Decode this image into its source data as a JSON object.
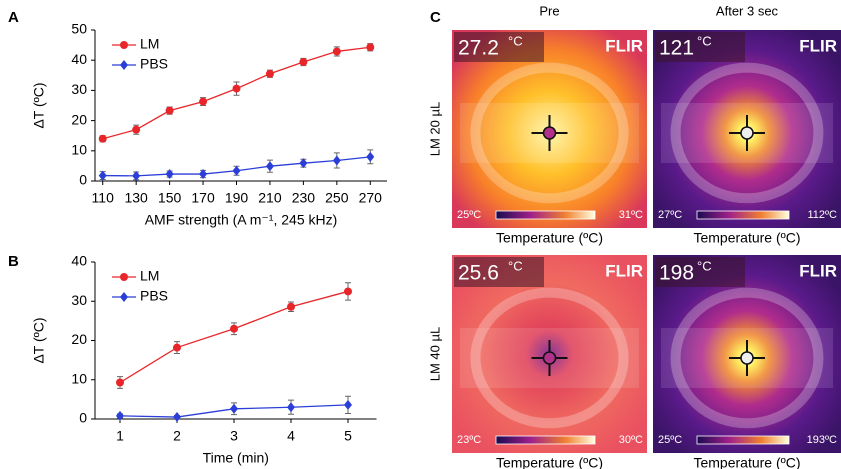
{
  "chart_data": [
    {
      "type": "line",
      "panel": "A",
      "x_label": "AMF strength (A m⁻¹, 245 kHz)",
      "y_label": "ΔT (ºC)",
      "categories": [
        110,
        130,
        150,
        170,
        190,
        210,
        230,
        250,
        270
      ],
      "ylim": [
        0,
        50
      ],
      "yticks": [
        0,
        10,
        20,
        30,
        40,
        50
      ],
      "legend": "upper left",
      "series": [
        {
          "name": "LM",
          "color": "#e8262a",
          "marker": "circle",
          "values": [
            14,
            17,
            23.3,
            26.3,
            30.6,
            35.5,
            39.4,
            42.9,
            44.3
          ],
          "errors": [
            1,
            1.5,
            1.2,
            1.3,
            2.2,
            1.2,
            1.2,
            1.5,
            1.2
          ]
        },
        {
          "name": "PBS",
          "color": "#2b3fd8",
          "marker": "diamond",
          "values": [
            1.8,
            1.7,
            2.3,
            2.3,
            3.4,
            4.9,
            5.9,
            6.8,
            8.0
          ],
          "errors": [
            1.3,
            1.3,
            1,
            1.2,
            1.5,
            2,
            1.3,
            2.5,
            2.3
          ]
        }
      ]
    },
    {
      "type": "line",
      "panel": "B",
      "x_label": "Time (min)",
      "y_label": "ΔT (ºC)",
      "categories": [
        1,
        2,
        3,
        4,
        5
      ],
      "ylim": [
        0,
        40
      ],
      "yticks": [
        0,
        10,
        20,
        30,
        40
      ],
      "legend": "upper left",
      "series": [
        {
          "name": "LM",
          "color": "#e8262a",
          "marker": "circle",
          "values": [
            9.3,
            18.2,
            23,
            28.6,
            32.5
          ],
          "errors": [
            1.5,
            1.5,
            1.5,
            1.2,
            2.2
          ]
        },
        {
          "name": "PBS",
          "color": "#2b3fd8",
          "marker": "diamond",
          "values": [
            0.8,
            0.5,
            2.6,
            3,
            3.6
          ],
          "errors": [
            0.5,
            0.4,
            1.5,
            1.8,
            2.2
          ]
        }
      ]
    }
  ],
  "panel_c": {
    "label": "C",
    "columns": [
      "Pre",
      "After 3 sec"
    ],
    "rows": [
      "LM 20 µL",
      "LM 40 µL"
    ],
    "images": [
      {
        "reading": "27.2",
        "unit": "°C",
        "brand": "FLIR",
        "scale_min": "25ºC",
        "scale_max": "31ºC",
        "caption": "Temperature (ºC)"
      },
      {
        "reading": "121",
        "unit": "°C",
        "brand": "FLIR",
        "scale_min": "27ºC",
        "scale_max": "112ºC",
        "caption": "Temperature (ºC)"
      },
      {
        "reading": "25.6",
        "unit": "°C",
        "brand": "FLIR",
        "scale_min": "23ºC",
        "scale_max": "30ºC",
        "caption": "Temperature (ºC)"
      },
      {
        "reading": "198",
        "unit": "°C",
        "brand": "FLIR",
        "scale_min": "25ºC",
        "scale_max": "193ºC",
        "caption": "Temperature (ºC)"
      }
    ]
  }
}
